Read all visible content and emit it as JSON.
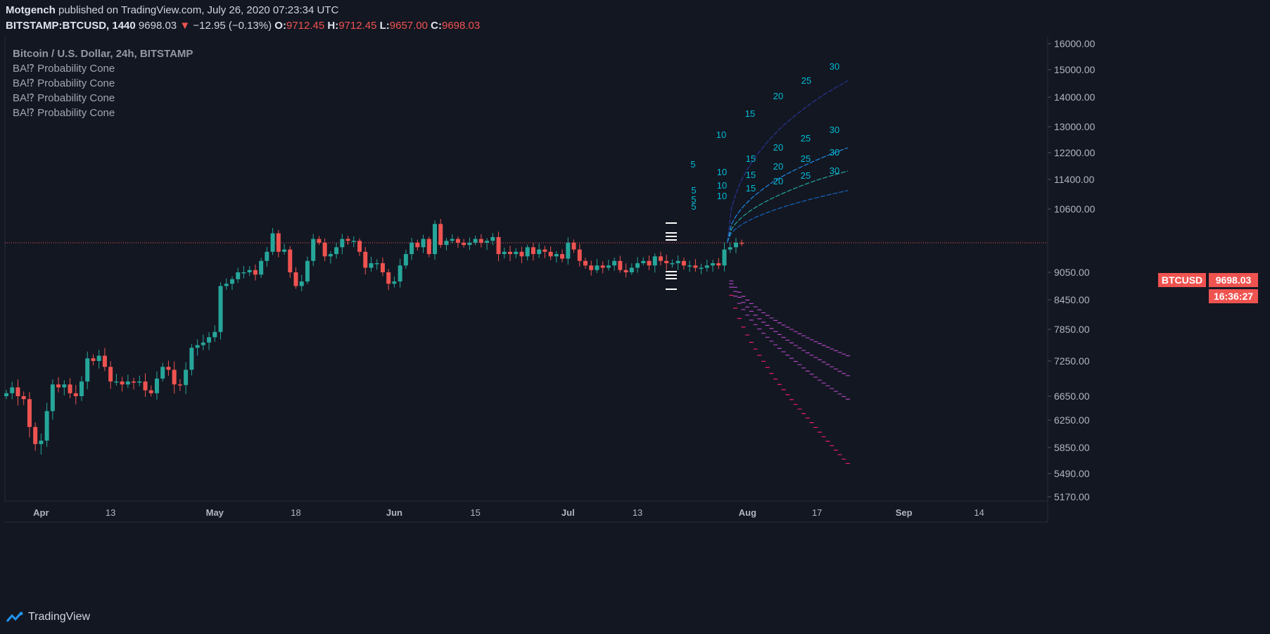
{
  "header": {
    "author": "Motgench",
    "published_text": "published on TradingView.com, July 26, 2020 07:23:34 UTC",
    "symbol": "BITSTAMP:BTCUSD, 1440",
    "last_price": "9698.03",
    "change": "−12.95 (−0.13%)",
    "open_label": "O:",
    "open": "9712.45",
    "high_label": "H:",
    "high": "9712.45",
    "low_label": "L:",
    "low": "9657.00",
    "close_label": "C:",
    "close": "9698.03"
  },
  "legend": {
    "title": "Bitcoin / U.S. Dollar, 24h, BITSTAMP",
    "indicators": [
      "BA⁉ Probability Cone",
      "BA⁉ Probability Cone",
      "BA⁉ Probability Cone",
      "BA⁉ Probability Cone"
    ]
  },
  "price_tag": {
    "symbol": "BTCUSD",
    "price": "9698.03",
    "countdown": "16:36:27"
  },
  "footer": {
    "brand": "TradingView"
  },
  "colors": {
    "bg": "#131722",
    "up": "#26a69a",
    "down": "#ef5350",
    "grid": "#1e222d",
    "cone_up": "#2962ff",
    "cone_down": "#e040fb",
    "label": "#00bcd4"
  },
  "chart_data": {
    "type": "candlestick",
    "title": "Bitcoin / U.S. Dollar, 24h, BITSTAMP",
    "y_ticks": [
      16000,
      15000,
      14000,
      13000,
      12200,
      11400,
      10600,
      9698.03,
      9050,
      8450,
      7850,
      7250,
      6650,
      6250,
      5850,
      5490,
      5170
    ],
    "y_tick_labels": [
      "16000.00",
      "15000.00",
      "14000.00",
      "13000.00",
      "12200.00",
      "11400.00",
      "10600.00",
      "9698.03",
      "9050.00",
      "8450.00",
      "7850.00",
      "7250.00",
      "6650.00",
      "6250.00",
      "5850.00",
      "5490.00",
      "5170.00"
    ],
    "x_tick_labels": [
      {
        "label": "Apr",
        "bold": true,
        "day": 6
      },
      {
        "label": "13",
        "bold": false,
        "day": 18
      },
      {
        "label": "May",
        "bold": true,
        "day": 36
      },
      {
        "label": "18",
        "bold": false,
        "day": 50
      },
      {
        "label": "Jun",
        "bold": true,
        "day": 67
      },
      {
        "label": "15",
        "bold": false,
        "day": 81
      },
      {
        "label": "Jul",
        "bold": true,
        "day": 97
      },
      {
        "label": "13",
        "bold": false,
        "day": 109
      },
      {
        "label": "Aug",
        "bold": true,
        "day": 128
      },
      {
        "label": "17",
        "bold": false,
        "day": 140
      },
      {
        "label": "Sep",
        "bold": true,
        "day": 155
      },
      {
        "label": "14",
        "bold": false,
        "day": 168
      }
    ],
    "candles_close": [
      6700,
      6800,
      6650,
      6600,
      6150,
      5900,
      5950,
      6400,
      6850,
      6800,
      6850,
      6700,
      6650,
      6900,
      7300,
      7250,
      7350,
      7150,
      6900,
      6900,
      6850,
      6900,
      6880,
      6900,
      6750,
      6700,
      6950,
      7150,
      7100,
      6850,
      6840,
      7100,
      7500,
      7550,
      7600,
      7700,
      7800,
      8750,
      8800,
      8900,
      9050,
      9050,
      9100,
      9000,
      9300,
      9500,
      9950,
      9500,
      9550,
      9050,
      8750,
      8850,
      9300,
      9800,
      9700,
      9400,
      9450,
      9600,
      9800,
      9750,
      9750,
      9500,
      9150,
      9250,
      9250,
      9050,
      8800,
      8850,
      9200,
      9450,
      9700,
      9600,
      9800,
      9450,
      10200,
      9650,
      9750,
      9800,
      9700,
      9650,
      9700,
      9800,
      9700,
      9750,
      9850,
      9450,
      9500,
      9450,
      9500,
      9400,
      9600,
      9450,
      9550,
      9500,
      9400,
      9450,
      9350,
      9700,
      9550,
      9300,
      9200,
      9100,
      9200,
      9150,
      9200,
      9300,
      9100,
      9050,
      9150,
      9250,
      9300,
      9200,
      9400,
      9300,
      9250,
      9250,
      9300,
      9200,
      9200,
      9150,
      9150,
      9200,
      9250,
      9200,
      9550,
      9600,
      9700,
      9698.03
    ],
    "cone_horizon_days": [
      5,
      10,
      15,
      20,
      25,
      30
    ],
    "cone_upper_30d": [
      14600,
      12350,
      11650,
      11100
    ],
    "cone_lower_30d": [
      7350,
      7000,
      6600,
      5630
    ]
  }
}
